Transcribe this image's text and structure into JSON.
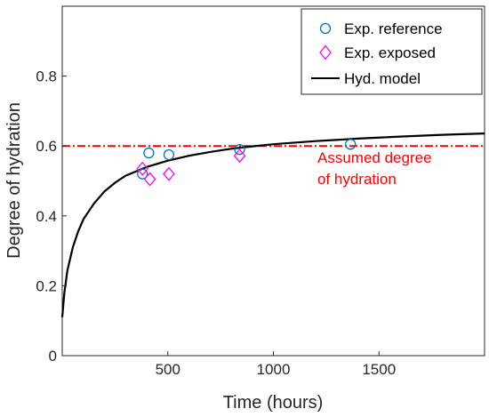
{
  "chart_data": {
    "type": "scatter",
    "xlabel": "Time (hours)",
    "ylabel": "Degree of hydration",
    "xlim": [
      0,
      2000
    ],
    "ylim": [
      0,
      1
    ],
    "xticks": [
      500,
      1000,
      1500
    ],
    "xtick_labels": [
      "500",
      "1000",
      "1500"
    ],
    "yticks": [
      0,
      0.2,
      0.4,
      0.6,
      0.8
    ],
    "ytick_labels": [
      "0",
      "0.2",
      "0.4",
      "0.6",
      "0.8"
    ],
    "grid": false,
    "legend_position": "top-right",
    "series": [
      {
        "name": "Exp. reference",
        "kind": "scatter",
        "marker": "circle",
        "color": "#0072bd",
        "points": [
          {
            "x": 380,
            "y": 0.52
          },
          {
            "x": 410,
            "y": 0.58
          },
          {
            "x": 505,
            "y": 0.575
          },
          {
            "x": 840,
            "y": 0.59
          },
          {
            "x": 1365,
            "y": 0.605
          }
        ]
      },
      {
        "name": "Exp. exposed",
        "kind": "scatter",
        "marker": "diamond",
        "color": "#ff00ff",
        "points": [
          {
            "x": 380,
            "y": 0.535
          },
          {
            "x": 415,
            "y": 0.505
          },
          {
            "x": 505,
            "y": 0.52
          },
          {
            "x": 840,
            "y": 0.572
          }
        ]
      },
      {
        "name": "Hyd. model",
        "kind": "line",
        "color": "#000000",
        "points": [
          {
            "x": 0,
            "y": 0.11
          },
          {
            "x": 10,
            "y": 0.18
          },
          {
            "x": 25,
            "y": 0.245
          },
          {
            "x": 50,
            "y": 0.31
          },
          {
            "x": 75,
            "y": 0.355
          },
          {
            "x": 100,
            "y": 0.39
          },
          {
            "x": 150,
            "y": 0.435
          },
          {
            "x": 200,
            "y": 0.47
          },
          {
            "x": 250,
            "y": 0.495
          },
          {
            "x": 300,
            "y": 0.515
          },
          {
            "x": 400,
            "y": 0.54
          },
          {
            "x": 500,
            "y": 0.558
          },
          {
            "x": 600,
            "y": 0.572
          },
          {
            "x": 700,
            "y": 0.583
          },
          {
            "x": 800,
            "y": 0.592
          },
          {
            "x": 900,
            "y": 0.599
          },
          {
            "x": 1000,
            "y": 0.605
          },
          {
            "x": 1200,
            "y": 0.614
          },
          {
            "x": 1400,
            "y": 0.621
          },
          {
            "x": 1600,
            "y": 0.627
          },
          {
            "x": 1800,
            "y": 0.632
          },
          {
            "x": 2000,
            "y": 0.636
          }
        ]
      }
    ],
    "reference_line": {
      "y": 0.6,
      "color": "#ff0000",
      "style": "dash-dot"
    },
    "annotation": {
      "lines": [
        "Assumed degree",
        "of hydration"
      ],
      "color": "#ff0000"
    }
  }
}
